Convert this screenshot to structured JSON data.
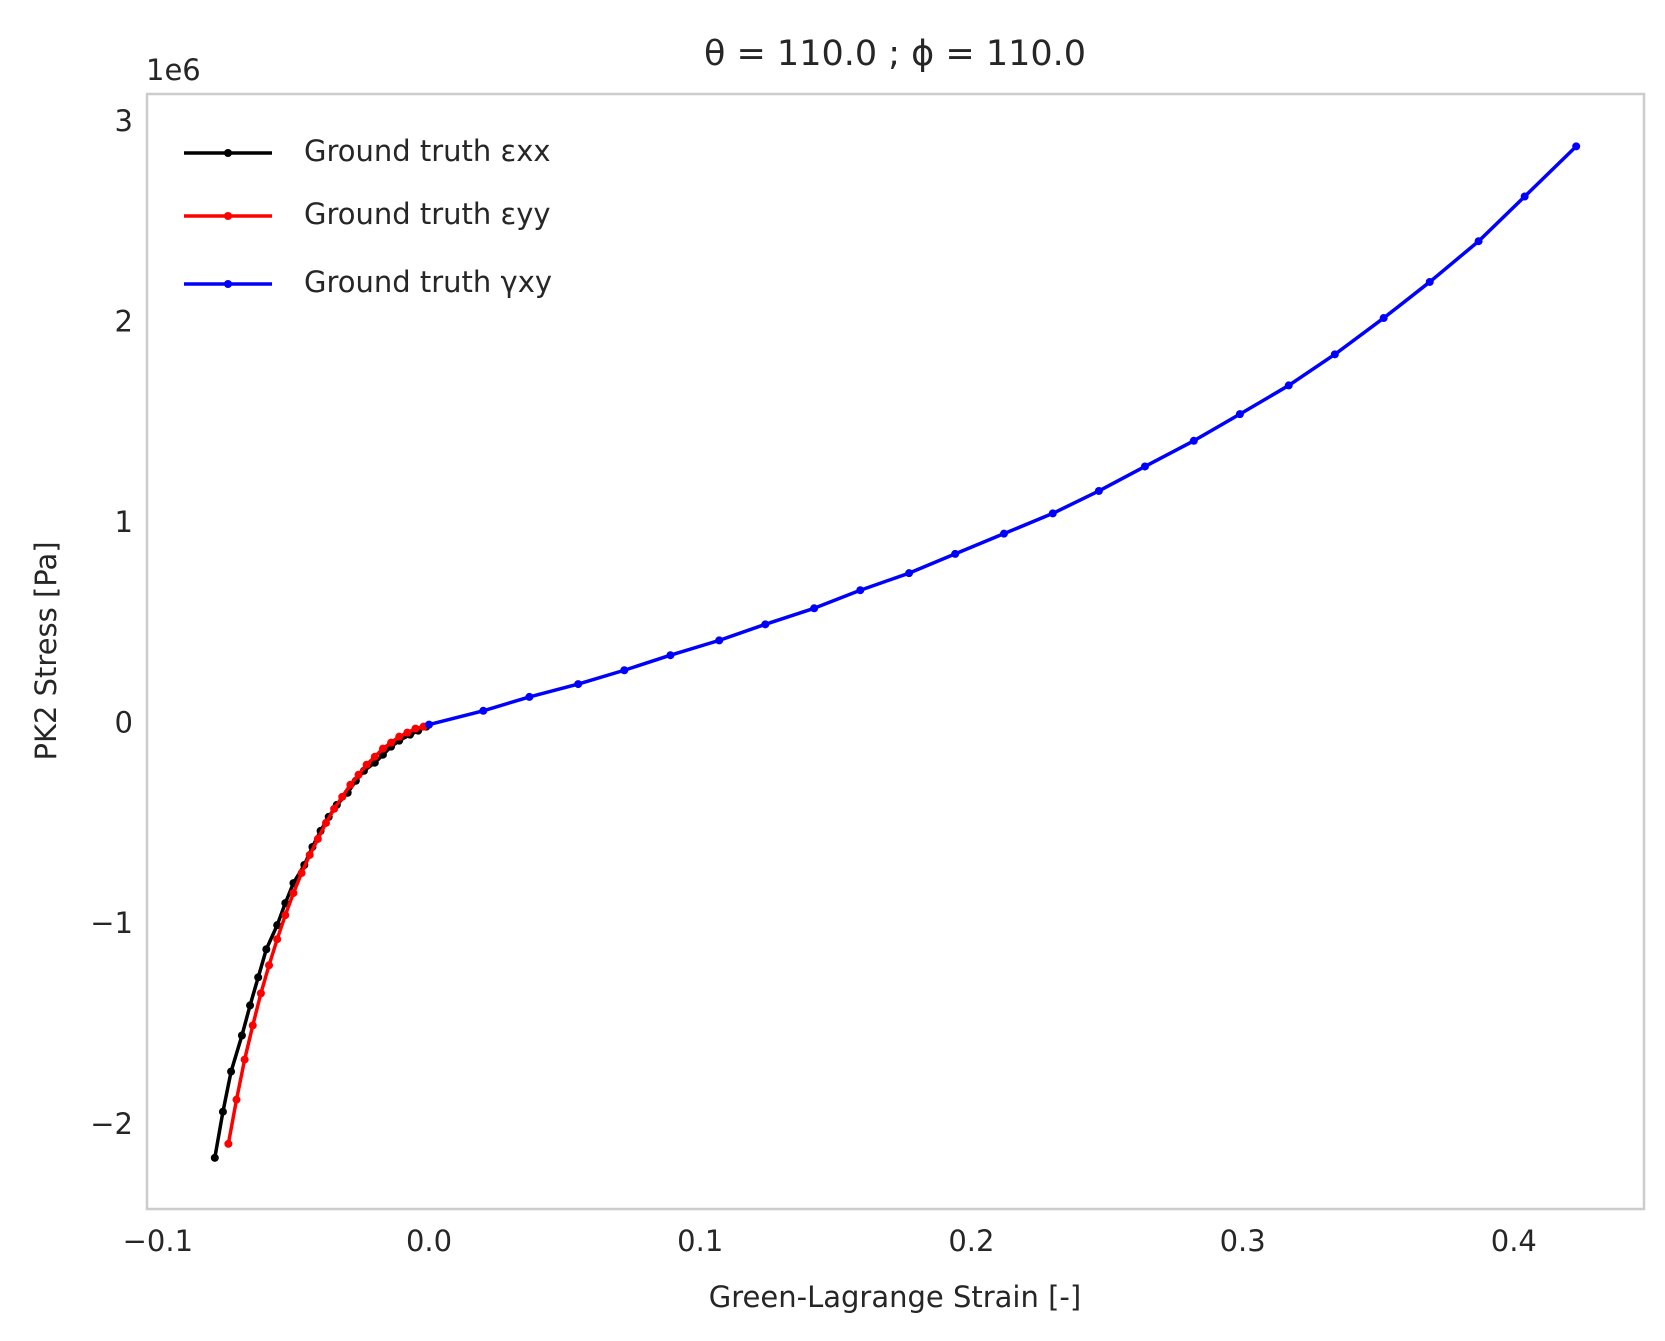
{
  "chart_data": {
    "type": "line",
    "title": "θ = 110.0 ; ϕ = 110.0",
    "x_label": "Green-Lagrange Strain [-]",
    "y_label": "PK2 Stress [Pa]",
    "y_offset_label": "1e6",
    "xlim": [
      -0.104,
      0.448
    ],
    "ylim": [
      -2.415,
      3.144
    ],
    "xticks": [
      {
        "value": -0.1,
        "label": "−0.1"
      },
      {
        "value": 0,
        "label": "0.0"
      },
      0.1,
      0.2,
      0.3,
      0.4
    ],
    "yticks": [
      {
        "value": -2,
        "label": "−2"
      },
      {
        "value": -1,
        "label": "−1"
      },
      0,
      1,
      2,
      3
    ],
    "grid": false,
    "legend": "upper-left",
    "series": [
      {
        "name": "Ground truth εxx",
        "color": "#000000",
        "x": [
          -0.079,
          -0.076,
          -0.073,
          -0.069,
          -0.066,
          -0.063,
          -0.06,
          -0.056,
          -0.053,
          -0.05,
          -0.046,
          -0.043,
          -0.04,
          -0.037,
          -0.034,
          -0.03,
          -0.027,
          -0.024,
          -0.02,
          -0.017,
          -0.014,
          -0.011,
          -0.007,
          -0.004,
          -0.001
        ],
        "values": [
          -2.16,
          -1.93,
          -1.73,
          -1.55,
          -1.4,
          -1.26,
          -1.12,
          -1.0,
          -0.89,
          -0.79,
          -0.7,
          -0.61,
          -0.53,
          -0.46,
          -0.4,
          -0.34,
          -0.28,
          -0.23,
          -0.19,
          -0.15,
          -0.11,
          -0.08,
          -0.05,
          -0.03,
          -0.01
        ]
      },
      {
        "name": "Ground truth εyy",
        "color": "#ff0000",
        "x": [
          -0.074,
          -0.071,
          -0.068,
          -0.065,
          -0.062,
          -0.059,
          -0.056,
          -0.053,
          -0.05,
          -0.047,
          -0.044,
          -0.041,
          -0.038,
          -0.035,
          -0.032,
          -0.029,
          -0.026,
          -0.023,
          -0.02,
          -0.017,
          -0.014,
          -0.011,
          -0.008,
          -0.005,
          -0.002
        ],
        "values": [
          -2.09,
          -1.87,
          -1.67,
          -1.5,
          -1.34,
          -1.2,
          -1.07,
          -0.95,
          -0.84,
          -0.74,
          -0.65,
          -0.57,
          -0.49,
          -0.42,
          -0.36,
          -0.3,
          -0.25,
          -0.2,
          -0.16,
          -0.12,
          -0.09,
          -0.06,
          -0.04,
          -0.02,
          -0.01
        ]
      },
      {
        "name": "Ground truth γxy",
        "color": "#0000ff",
        "x": [
          0,
          0.02,
          0.037,
          0.055,
          0.072,
          0.089,
          0.107,
          0.124,
          0.142,
          0.159,
          0.177,
          0.194,
          0.212,
          0.23,
          0.247,
          0.264,
          0.282,
          0.299,
          0.317,
          0.334,
          0.352,
          0.369,
          0.387,
          0.404,
          0.423
        ],
        "values": [
          0,
          0.069,
          0.138,
          0.202,
          0.271,
          0.346,
          0.42,
          0.5,
          0.58,
          0.67,
          0.755,
          0.851,
          0.952,
          1.053,
          1.165,
          1.287,
          1.415,
          1.548,
          1.691,
          1.846,
          2.027,
          2.207,
          2.41,
          2.633,
          2.883
        ]
      }
    ]
  }
}
